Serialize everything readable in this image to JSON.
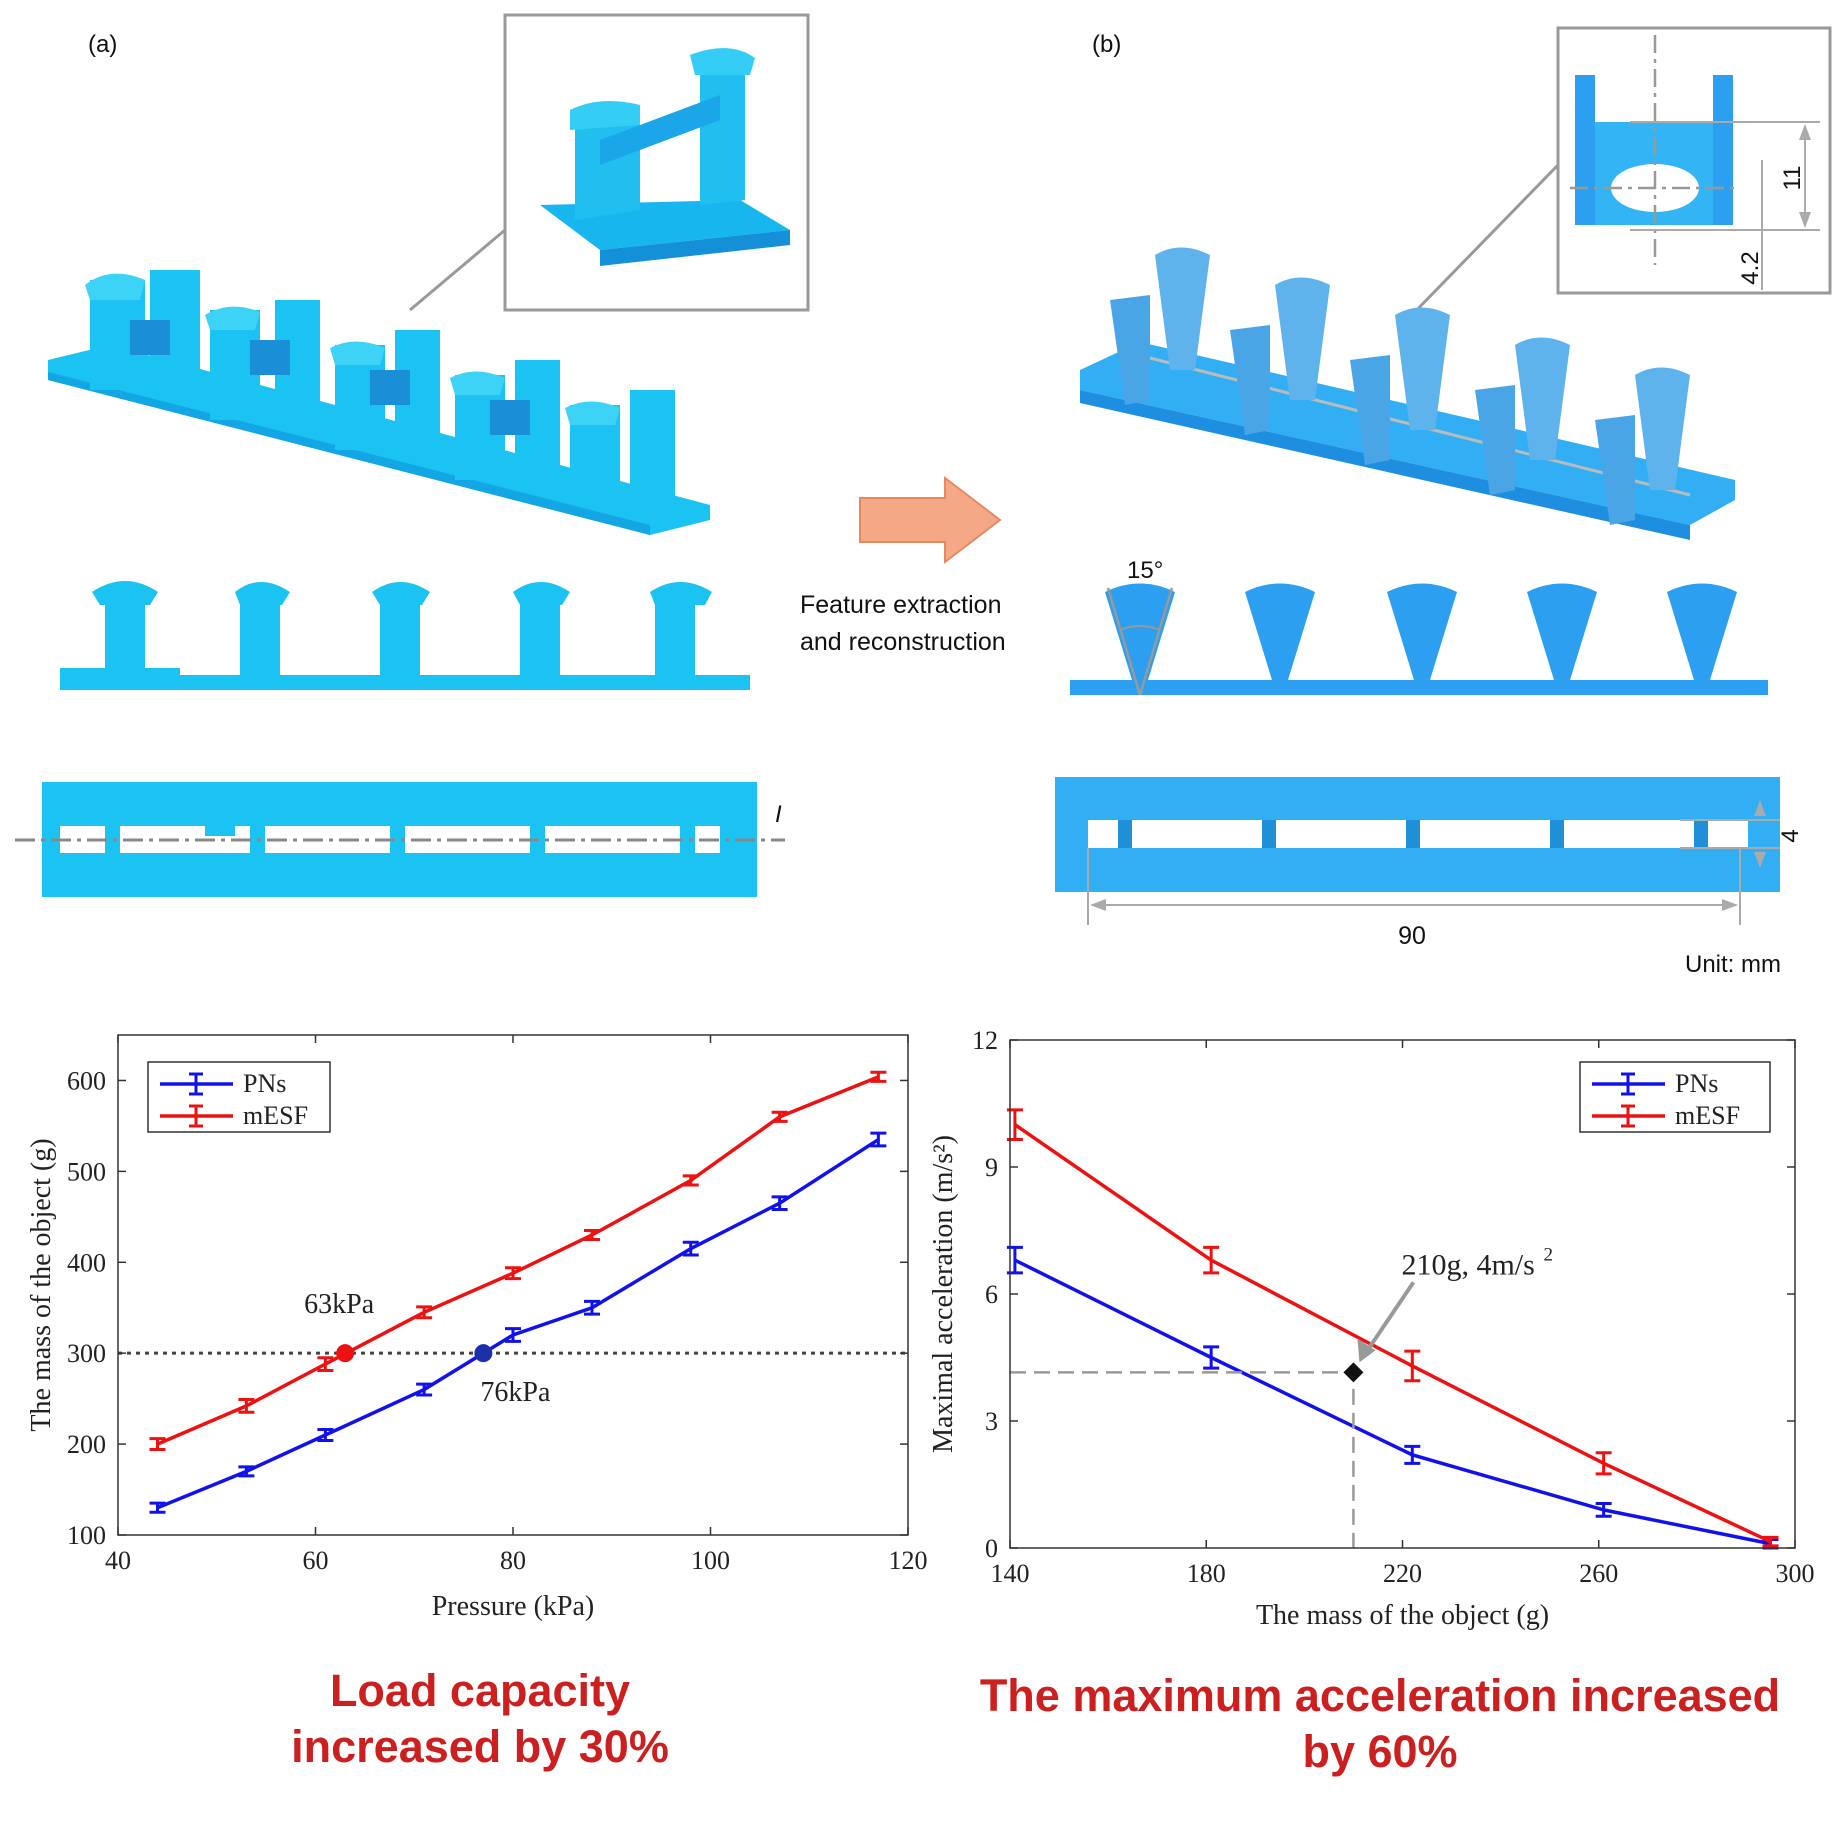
{
  "panel_a": {
    "label": "(a)",
    "section_mark": "I"
  },
  "panel_b": {
    "label": "(b)",
    "angle": "15°",
    "dim_11": "11",
    "dim_4_2": "4.2",
    "dim_4": "4",
    "dim_90": "90",
    "unit": "Unit: mm"
  },
  "arrow_caption": {
    "line1": "Feature extraction",
    "line2": "and reconstruction"
  },
  "colors": {
    "part_light": "#1bc3f2",
    "part_dark": "#2c9ff0",
    "arrow": "#f4a886",
    "pns": "#1111ee",
    "mesf": "#ee1111"
  },
  "captions": {
    "left_line1": "Load capacity",
    "left_line2": "increased by 30%",
    "right_line1": "The maximum acceleration increased",
    "right_line2": "by 60%"
  },
  "chart_data": [
    {
      "type": "line",
      "xlabel": "Pressure (kPa)",
      "ylabel": "The mass of the object (g)",
      "xlim": [
        40,
        120
      ],
      "ylim": [
        100,
        650
      ],
      "xticks": [
        40,
        60,
        80,
        100,
        120
      ],
      "yticks": [
        100,
        200,
        300,
        400,
        500,
        600
      ],
      "legend": "top-left",
      "series": [
        {
          "name": "PNs",
          "x": [
            44,
            53,
            61,
            71,
            80,
            88,
            98,
            107,
            117
          ],
          "y": [
            130,
            170,
            210,
            260,
            320,
            350,
            415,
            465,
            535
          ],
          "err": [
            5,
            5,
            6,
            6,
            7,
            7,
            7,
            7,
            7
          ]
        },
        {
          "name": "mESF",
          "x": [
            44,
            53,
            61,
            71,
            80,
            88,
            98,
            107,
            117
          ],
          "y": [
            200,
            242,
            288,
            345,
            388,
            430,
            490,
            560,
            604
          ],
          "err": [
            6,
            7,
            7,
            6,
            6,
            5,
            5,
            5,
            5
          ]
        }
      ],
      "reference_line": {
        "y": 300
      },
      "annotations": [
        {
          "text": "63kPa",
          "x": 63,
          "y": 300,
          "series": "mESF"
        },
        {
          "text": "76kPa",
          "x": 77,
          "y": 300,
          "series": "PNs"
        }
      ]
    },
    {
      "type": "line",
      "xlabel": "The mass of the object (g)",
      "ylabel": "Maximal acceleration (m/s²)",
      "xlim": [
        140,
        300
      ],
      "ylim": [
        0,
        12
      ],
      "xticks": [
        140,
        180,
        220,
        260,
        300
      ],
      "yticks": [
        0,
        3,
        6,
        9,
        12
      ],
      "legend": "top-right",
      "series": [
        {
          "name": "PNs",
          "x": [
            141,
            181,
            222,
            261,
            295
          ],
          "y": [
            6.8,
            4.5,
            2.2,
            0.9,
            0.1
          ],
          "err": [
            0.3,
            0.25,
            0.2,
            0.15,
            0.1
          ]
        },
        {
          "name": "mESF",
          "x": [
            141,
            181,
            222,
            261,
            295
          ],
          "y": [
            10.0,
            6.8,
            4.3,
            2.0,
            0.15
          ],
          "err": [
            0.35,
            0.3,
            0.35,
            0.25,
            0.1
          ]
        }
      ],
      "annotations": [
        {
          "text": "210g, 4m/s",
          "sup": "2",
          "x": 210,
          "y": 4.15
        }
      ]
    }
  ]
}
